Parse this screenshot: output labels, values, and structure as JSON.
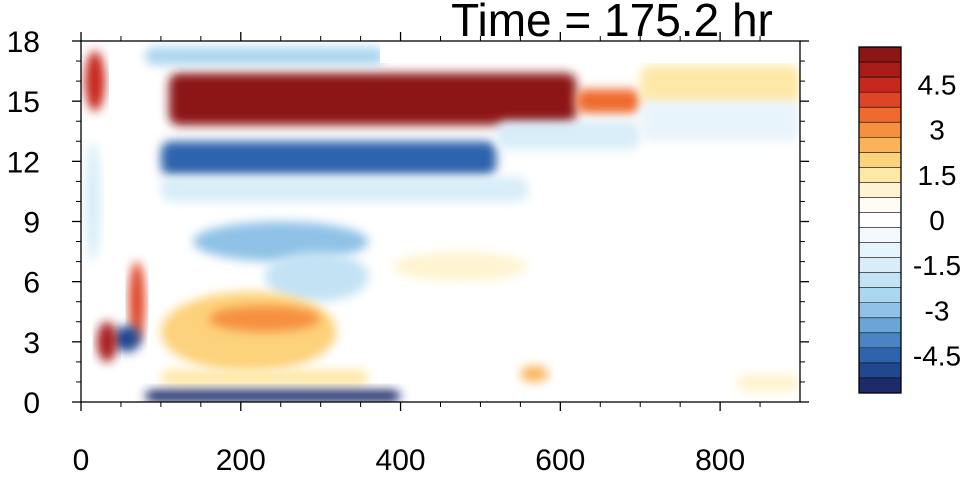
{
  "chart_data": {
    "type": "heatmap",
    "title": "Time = 175.2 hr",
    "xlabel": "",
    "ylabel": "",
    "xlim": [
      0,
      900
    ],
    "ylim": [
      0,
      18
    ],
    "x_ticks": [
      "0",
      "200",
      "400",
      "600",
      "800"
    ],
    "x_tick_values": [
      0,
      200,
      400,
      600,
      800
    ],
    "y_ticks": [
      "0",
      "3",
      "6",
      "9",
      "12",
      "15",
      "18"
    ],
    "y_tick_values": [
      0,
      3,
      6,
      9,
      12,
      15,
      18
    ],
    "colorbar": {
      "labels": [
        "4.5",
        "3",
        "1.5",
        "0",
        "-1.5",
        "-3",
        "-4.5"
      ],
      "label_values": [
        4.5,
        3,
        1.5,
        0,
        -1.5,
        -3,
        -4.5
      ],
      "levels": [
        -5.5,
        -5,
        -4.5,
        -4,
        -3.5,
        -3,
        -2.5,
        -2,
        -1.5,
        -1,
        -0.5,
        0,
        0.5,
        1,
        1.5,
        2,
        2.5,
        3,
        3.5,
        4,
        4.5,
        5,
        5.5
      ],
      "colors": [
        "#1e2b6a",
        "#21478f",
        "#2f63ad",
        "#4b84c4",
        "#6ba4d6",
        "#8fc2e6",
        "#aad6ef",
        "#c3e3f4",
        "#d8edf8",
        "#e8f4fb",
        "#f3f9fd",
        "#ffffff",
        "#fffdf3",
        "#fff4d2",
        "#fee8a8",
        "#fdd27c",
        "#fbb359",
        "#f6903f",
        "#ee6a2f",
        "#dd4526",
        "#c6271f",
        "#a81b1b",
        "#8c1515"
      ]
    },
    "features": [
      {
        "x": [
          110,
          620
        ],
        "y": [
          13.8,
          16.4
        ],
        "value": 5.5,
        "shape": "band"
      },
      {
        "x": [
          620,
          700
        ],
        "y": [
          14.4,
          15.6
        ],
        "value": 3.5,
        "shape": "band"
      },
      {
        "x": [
          700,
          900
        ],
        "y": [
          14.8,
          16.8
        ],
        "value": 1.5,
        "shape": "band"
      },
      {
        "x": [
          80,
          380
        ],
        "y": [
          16.8,
          17.7
        ],
        "value": -2.5,
        "shape": "band"
      },
      {
        "x": [
          100,
          520
        ],
        "y": [
          11.3,
          13.0
        ],
        "value": -4.5,
        "shape": "band"
      },
      {
        "x": [
          520,
          700
        ],
        "y": [
          12.6,
          14.0
        ],
        "value": -1.5,
        "shape": "band"
      },
      {
        "x": [
          700,
          900
        ],
        "y": [
          13.0,
          15.0
        ],
        "value": -0.8,
        "shape": "band"
      },
      {
        "x": [
          100,
          560
        ],
        "y": [
          10.0,
          11.2
        ],
        "value": -1.5,
        "shape": "band"
      },
      {
        "x": [
          140,
          360
        ],
        "y": [
          7.0,
          9.0
        ],
        "value": -3.0,
        "shape": "blob"
      },
      {
        "x": [
          230,
          360
        ],
        "y": [
          5.0,
          7.5
        ],
        "value": -1.8,
        "shape": "blob"
      },
      {
        "x": [
          100,
          320
        ],
        "y": [
          1.5,
          5.5
        ],
        "value": 2.0,
        "shape": "blob"
      },
      {
        "x": [
          160,
          300
        ],
        "y": [
          3.5,
          4.8
        ],
        "value": 2.8,
        "shape": "blob"
      },
      {
        "x": [
          100,
          360
        ],
        "y": [
          0.8,
          1.6
        ],
        "value": 1.5,
        "shape": "band"
      },
      {
        "x": [
          80,
          400
        ],
        "y": [
          0.0,
          0.6
        ],
        "value": -5.5,
        "shape": "band"
      },
      {
        "x": [
          550,
          585
        ],
        "y": [
          1.0,
          1.8
        ],
        "value": 2.5,
        "shape": "blob"
      },
      {
        "x": [
          390,
          560
        ],
        "y": [
          6.0,
          7.5
        ],
        "value": 0.8,
        "shape": "blob"
      },
      {
        "x": [
          60,
          80
        ],
        "y": [
          3.0,
          7.0
        ],
        "value": 4.0,
        "shape": "blob"
      },
      {
        "x": [
          40,
          75
        ],
        "y": [
          2.5,
          3.8
        ],
        "value": -5.0,
        "shape": "blob"
      },
      {
        "x": [
          20,
          45
        ],
        "y": [
          2.0,
          4.0
        ],
        "value": 5.0,
        "shape": "blob"
      },
      {
        "x": [
          5,
          30
        ],
        "y": [
          14.5,
          17.5
        ],
        "value": 4.5,
        "shape": "blob"
      },
      {
        "x": [
          5,
          25
        ],
        "y": [
          7.0,
          13.0
        ],
        "value": -1.5,
        "shape": "blob"
      },
      {
        "x": [
          820,
          900
        ],
        "y": [
          0.5,
          1.4
        ],
        "value": 1.0,
        "shape": "band"
      }
    ]
  }
}
